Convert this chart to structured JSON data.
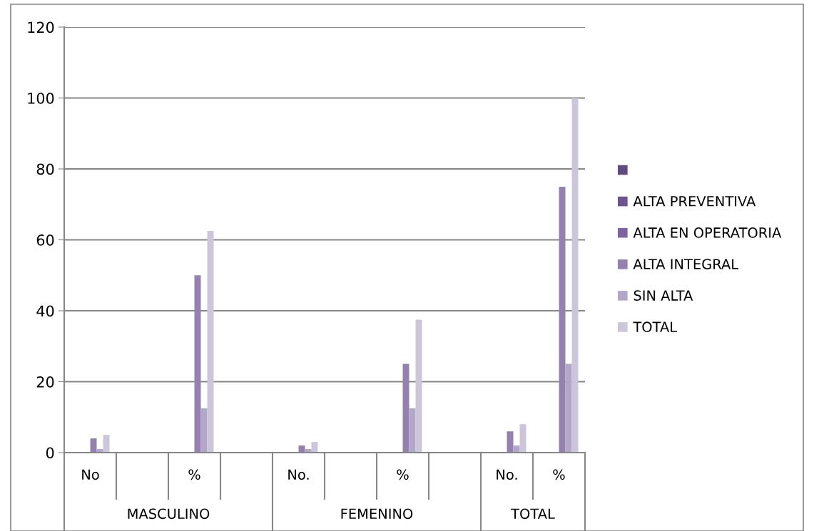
{
  "chart_data": {
    "type": "bar",
    "categories": [
      "No",
      null,
      "%",
      null,
      "No.",
      null,
      "%",
      null,
      "No.",
      "%"
    ],
    "series": [
      {
        "color": "#5f4b7d",
        "values": [
          null,
          null,
          null,
          null,
          null,
          null,
          null,
          null,
          null,
          null
        ]
      },
      {
        "name": "ALTA PREVENTIVA",
        "color": "#6b5490",
        "values": [
          null,
          null,
          null,
          null,
          null,
          null,
          null,
          null,
          null,
          null
        ]
      },
      {
        "name": "ALTA EN OPERATORIA",
        "color": "#7d64a0",
        "values": [
          null,
          null,
          null,
          null,
          null,
          null,
          null,
          null,
          null,
          null
        ]
      },
      {
        "name": "ALTA INTEGRAL",
        "color": "#9581b0",
        "values": [
          4,
          null,
          50,
          null,
          2,
          null,
          25,
          null,
          6,
          75
        ]
      },
      {
        "name": "SIN ALTA",
        "color": "#b2a7c8",
        "values": [
          1,
          null,
          12.5,
          null,
          1,
          null,
          12.5,
          null,
          2,
          25
        ]
      },
      {
        "name": "TOTAL",
        "color": "#cdc6da",
        "values": [
          5,
          null,
          62.5,
          null,
          3,
          null,
          37.5,
          null,
          8,
          100
        ]
      }
    ],
    "annotations": [
      "MASCULINO",
      "FEMENINO",
      "TOTAL"
    ],
    "ylim": [
      0,
      120
    ],
    "yticks": [
      0,
      20,
      40,
      60,
      80,
      100,
      120
    ],
    "grid": "y",
    "legend": "right"
  }
}
